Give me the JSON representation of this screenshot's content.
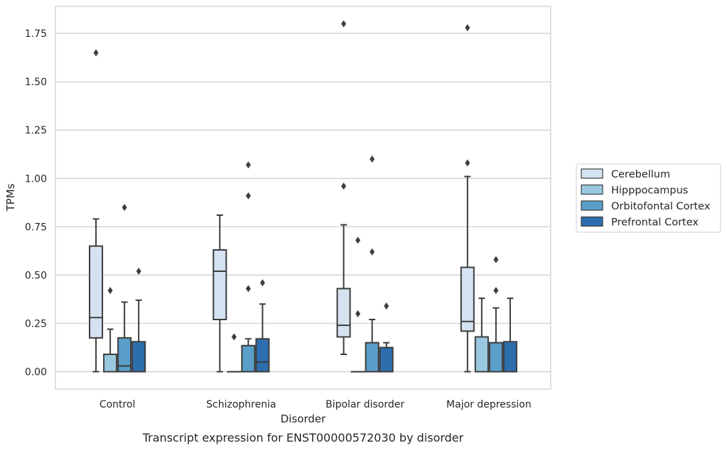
{
  "chart_data": {
    "type": "box",
    "title": "Transcript expression for ENST00000572030 by disorder",
    "xlabel": "Disorder",
    "ylabel": "TPMs",
    "ylim": [
      -0.09,
      1.89
    ],
    "yticks": [
      0.0,
      0.25,
      0.5,
      0.75,
      1.0,
      1.25,
      1.5,
      1.75
    ],
    "ytick_labels": [
      "0.00",
      "0.25",
      "0.50",
      "0.75",
      "1.00",
      "1.25",
      "1.50",
      "1.75"
    ],
    "grid": "horizontal",
    "legend_position": "right",
    "categories": [
      "Control",
      "Schizophrenia",
      "Bipolar disorder",
      "Major depression"
    ],
    "series": [
      {
        "name": "Cerebellum",
        "color": "#d4e2f1",
        "boxes": [
          {
            "whisker_low": 0.0,
            "q1": 0.175,
            "median": 0.28,
            "q3": 0.65,
            "whisker_high": 0.79,
            "outliers": [
              1.65
            ]
          },
          {
            "whisker_low": 0.0,
            "q1": 0.27,
            "median": 0.52,
            "q3": 0.63,
            "whisker_high": 0.81,
            "outliers": []
          },
          {
            "whisker_low": 0.09,
            "q1": 0.18,
            "median": 0.24,
            "q3": 0.43,
            "whisker_high": 0.76,
            "outliers": [
              0.96,
              1.8
            ]
          },
          {
            "whisker_low": 0.0,
            "q1": 0.21,
            "median": 0.26,
            "q3": 0.54,
            "whisker_high": 1.01,
            "outliers": [
              1.08,
              1.78
            ]
          }
        ]
      },
      {
        "name": "Hipppocampus",
        "color": "#9ac8e0",
        "boxes": [
          {
            "whisker_low": 0.0,
            "q1": 0.0,
            "median": 0.0,
            "q3": 0.09,
            "whisker_high": 0.22,
            "outliers": [
              0.42
            ]
          },
          {
            "whisker_low": 0.0,
            "q1": 0.0,
            "median": 0.0,
            "q3": 0.0,
            "whisker_high": 0.0,
            "outliers": [
              0.18
            ]
          },
          {
            "whisker_low": 0.0,
            "q1": 0.0,
            "median": 0.0,
            "q3": 0.0,
            "whisker_high": 0.0,
            "outliers": [
              0.3,
              0.68
            ]
          },
          {
            "whisker_low": 0.0,
            "q1": 0.0,
            "median": 0.0,
            "q3": 0.18,
            "whisker_high": 0.38,
            "outliers": []
          }
        ]
      },
      {
        "name": "Orbitofontal Cortex",
        "color": "#5a9ec9",
        "boxes": [
          {
            "whisker_low": 0.0,
            "q1": 0.0,
            "median": 0.03,
            "q3": 0.175,
            "whisker_high": 0.36,
            "outliers": [
              0.85
            ]
          },
          {
            "whisker_low": 0.0,
            "q1": 0.0,
            "median": 0.0,
            "q3": 0.135,
            "whisker_high": 0.17,
            "outliers": [
              0.43,
              0.91,
              1.07
            ]
          },
          {
            "whisker_low": 0.0,
            "q1": 0.0,
            "median": 0.0,
            "q3": 0.15,
            "whisker_high": 0.27,
            "outliers": [
              0.62,
              1.1
            ]
          },
          {
            "whisker_low": 0.0,
            "q1": 0.0,
            "median": 0.0,
            "q3": 0.15,
            "whisker_high": 0.33,
            "outliers": [
              0.42,
              0.58
            ]
          }
        ]
      },
      {
        "name": "Prefrontal Cortex",
        "color": "#2d6fae",
        "boxes": [
          {
            "whisker_low": 0.0,
            "q1": 0.0,
            "median": 0.0,
            "q3": 0.155,
            "whisker_high": 0.37,
            "outliers": [
              0.52
            ]
          },
          {
            "whisker_low": 0.0,
            "q1": 0.0,
            "median": 0.05,
            "q3": 0.17,
            "whisker_high": 0.35,
            "outliers": [
              0.46
            ]
          },
          {
            "whisker_low": 0.0,
            "q1": 0.0,
            "median": 0.0,
            "q3": 0.125,
            "whisker_high": 0.15,
            "outliers": [
              0.34
            ]
          },
          {
            "whisker_low": 0.0,
            "q1": 0.0,
            "median": 0.0,
            "q3": 0.155,
            "whisker_high": 0.38,
            "outliers": []
          }
        ]
      }
    ]
  }
}
